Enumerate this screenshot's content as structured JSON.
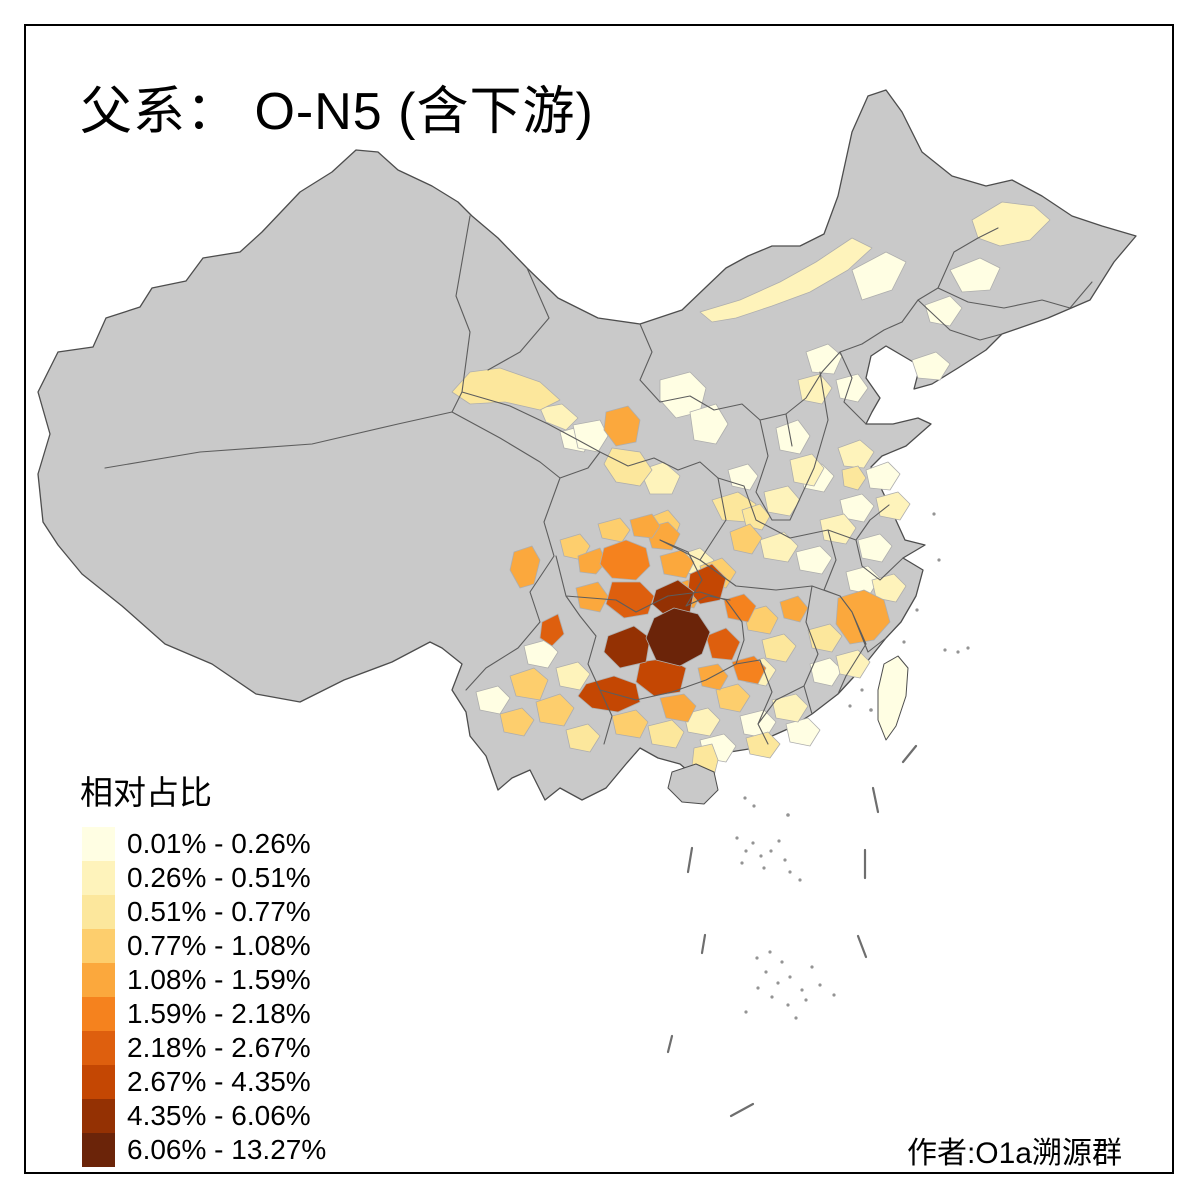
{
  "title": {
    "text": "父系： O-N5 (含下游)"
  },
  "legend": {
    "title": "相对占比",
    "classes": [
      {
        "label": "0.01% - 0.26%",
        "color": "#FFFEE3"
      },
      {
        "label": "0.26% - 0.51%",
        "color": "#FEF3BB"
      },
      {
        "label": "0.51% - 0.77%",
        "color": "#FCE79C"
      },
      {
        "label": "0.77% - 1.08%",
        "color": "#FDCE6D"
      },
      {
        "label": "1.08% - 1.59%",
        "color": "#FBA83D"
      },
      {
        "label": "1.59% - 2.18%",
        "color": "#F5821E"
      },
      {
        "label": "2.18% - 2.67%",
        "color": "#DE5F0E"
      },
      {
        "label": "2.67% - 4.35%",
        "color": "#C44703"
      },
      {
        "label": "4.35% - 6.06%",
        "color": "#943103"
      },
      {
        "label": "6.06% - 13.27%",
        "color": "#6B2409"
      }
    ]
  },
  "attribution": "作者:O1a溯源群",
  "map": {
    "description": "china-prefecture-choropleth",
    "no_data_color": "#C9C9C9",
    "outline_color": "#4D4D4D",
    "hotspot_region": "Guizhou"
  }
}
